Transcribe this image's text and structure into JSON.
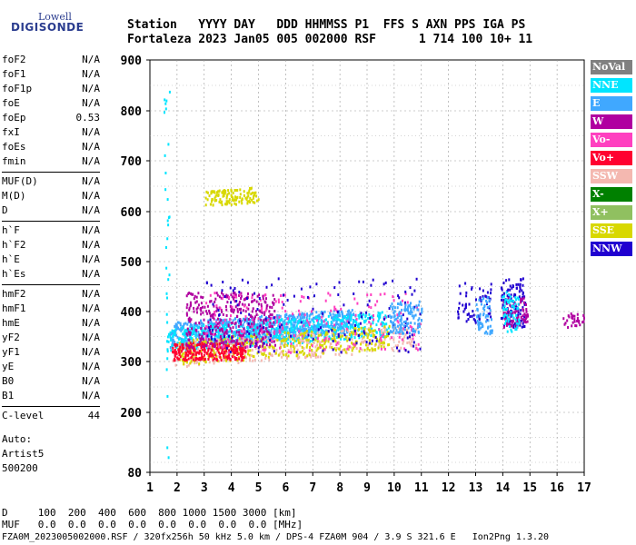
{
  "logo": {
    "line1": "Lowell",
    "line2": "DIGISONDE"
  },
  "header": {
    "line1": "Station   YYYY DAY   DDD HHMMSS P1  FFS S AXN PPS IGA PS",
    "line2": "Fortaleza 2023 Jan05 005 002000 RSF      1 714 100 10+ 11"
  },
  "params": {
    "g1": [
      {
        "k": "foF2",
        "v": "N/A"
      },
      {
        "k": "foF1",
        "v": "N/A"
      },
      {
        "k": "foF1p",
        "v": "N/A"
      },
      {
        "k": "foE",
        "v": "N/A"
      },
      {
        "k": "foEp",
        "v": "0.53"
      },
      {
        "k": "fxI",
        "v": "N/A"
      },
      {
        "k": "foEs",
        "v": "N/A"
      },
      {
        "k": "fmin",
        "v": "N/A"
      }
    ],
    "g2": [
      {
        "k": "MUF(D)",
        "v": "N/A"
      },
      {
        "k": "M(D)",
        "v": "N/A"
      },
      {
        "k": "D",
        "v": "N/A"
      }
    ],
    "g3": [
      {
        "k": "h`F",
        "v": "N/A"
      },
      {
        "k": "h`F2",
        "v": "N/A"
      },
      {
        "k": "h`E",
        "v": "N/A"
      },
      {
        "k": "h`Es",
        "v": "N/A"
      }
    ],
    "g4": [
      {
        "k": "hmF2",
        "v": "N/A"
      },
      {
        "k": "hmF1",
        "v": "N/A"
      },
      {
        "k": "hmE",
        "v": "N/A"
      },
      {
        "k": "yF2",
        "v": "N/A"
      },
      {
        "k": "yF1",
        "v": "N/A"
      },
      {
        "k": "yE",
        "v": "N/A"
      },
      {
        "k": "B0",
        "v": "N/A"
      },
      {
        "k": "B1",
        "v": "N/A"
      }
    ],
    "g5": [
      {
        "k": "C-level",
        "v": "44"
      }
    ],
    "auto": [
      "Auto:",
      "Artist5",
      "500200"
    ]
  },
  "bottom": {
    "line1": "D     100  200  400  600  800 1000 1500 3000 [km]",
    "line2": "MUF   0.0  0.0  0.0  0.0  0.0  0.0  0.0  0.0 [MHz]"
  },
  "footer": "FZA0M_2023005002000.RSF / 320fx256h 50 kHz 5.0 km / DPS-4 FZA0M 904 / 3.9 S 321.6 E   Ion2Png 1.3.20",
  "legend": [
    {
      "label": "NoVal",
      "color": "#808080"
    },
    {
      "label": "NNE",
      "color": "#00e5ff"
    },
    {
      "label": "E",
      "color": "#40a8ff"
    },
    {
      "label": "W",
      "color": "#b000a0"
    },
    {
      "label": "Vo-",
      "color": "#ff40c0"
    },
    {
      "label": "Vo+",
      "color": "#ff0030"
    },
    {
      "label": "SSW",
      "color": "#f4b8b0"
    },
    {
      "label": "X-",
      "color": "#008000"
    },
    {
      "label": "X+",
      "color": "#90c060"
    },
    {
      "label": "SSE",
      "color": "#d8d800"
    },
    {
      "label": "NNW",
      "color": "#2000d0"
    }
  ],
  "chart_data": {
    "type": "scatter",
    "x_ticks": [
      1,
      2,
      3,
      4,
      5,
      6,
      7,
      8,
      9,
      10,
      11,
      12,
      13,
      14,
      15,
      16,
      17
    ],
    "y_ticks": [
      80,
      200,
      300,
      400,
      500,
      600,
      700,
      800,
      900
    ],
    "grid": true,
    "clusters": [
      {
        "name": "E",
        "x": [
          1.7,
          8.5
        ],
        "y": [
          330,
          380
        ],
        "n": 900
      },
      {
        "name": "NNE",
        "x": [
          1.6,
          9.8
        ],
        "y": [
          320,
          370
        ],
        "n": 500
      },
      {
        "name": "SSW",
        "x": [
          1.8,
          10.8
        ],
        "y": [
          290,
          340
        ],
        "n": 350
      },
      {
        "name": "SSE",
        "x": [
          2.0,
          9.8
        ],
        "y": [
          295,
          345
        ],
        "n": 350
      },
      {
        "name": "Vo+",
        "x": [
          1.8,
          4.5
        ],
        "y": [
          305,
          340
        ],
        "n": 250
      },
      {
        "name": "W",
        "x": [
          2.3,
          5.6
        ],
        "y": [
          330,
          440
        ],
        "n": 350
      },
      {
        "name": "Vo-",
        "x": [
          3.0,
          11.0
        ],
        "y": [
          320,
          440
        ],
        "n": 200
      },
      {
        "name": "NNW",
        "x": [
          3.0,
          11.0
        ],
        "y": [
          320,
          470
        ],
        "n": 150
      },
      {
        "name": "SSE",
        "x": [
          3.0,
          5.0
        ],
        "y": [
          612,
          642
        ],
        "n": 120
      },
      {
        "name": "E",
        "x": [
          9.8,
          11.0
        ],
        "y": [
          355,
          420
        ],
        "n": 120
      },
      {
        "name": "NNW",
        "x": [
          12.3,
          13.6
        ],
        "y": [
          380,
          460
        ],
        "n": 60
      },
      {
        "name": "E",
        "x": [
          13.0,
          13.6
        ],
        "y": [
          355,
          430
        ],
        "n": 60
      },
      {
        "name": "NNW",
        "x": [
          13.9,
          14.8
        ],
        "y": [
          370,
          470
        ],
        "n": 120
      },
      {
        "name": "W",
        "x": [
          14.0,
          14.9
        ],
        "y": [
          370,
          430
        ],
        "n": 80
      },
      {
        "name": "NNE",
        "x": [
          13.9,
          14.6
        ],
        "y": [
          360,
          440
        ],
        "n": 60
      },
      {
        "name": "W",
        "x": [
          16.2,
          17.0
        ],
        "y": [
          370,
          400
        ],
        "n": 30
      },
      {
        "name": "NNE",
        "x": [
          1.5,
          1.7
        ],
        "y": [
          80,
          850
        ],
        "n": 30
      }
    ]
  }
}
